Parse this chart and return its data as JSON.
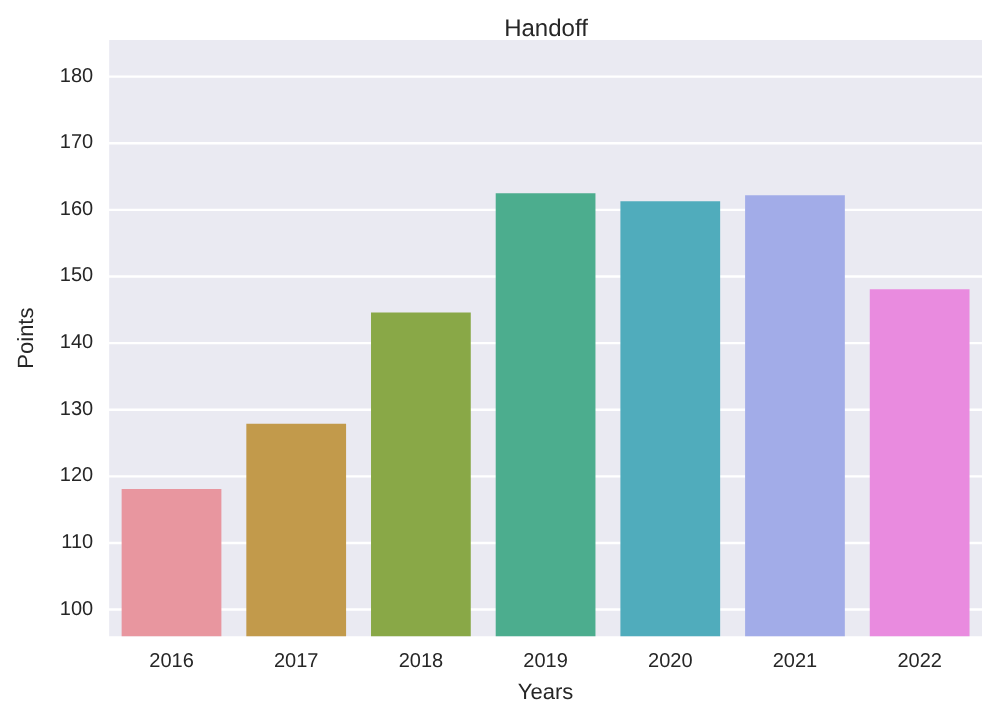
{
  "chart_data": {
    "type": "bar",
    "title": "Handoff",
    "xlabel": "Years",
    "ylabel": "Points",
    "categories": [
      "2016",
      "2017",
      "2018",
      "2019",
      "2020",
      "2021",
      "2022"
    ],
    "values": [
      118.1,
      127.9,
      144.6,
      162.5,
      161.3,
      162.2,
      148.1
    ],
    "colors": [
      "#e8969f",
      "#c29a4b",
      "#89a847",
      "#4cad8e",
      "#50acbc",
      "#a2ace8",
      "#e98bdf"
    ],
    "ylim": [
      96,
      185.5
    ],
    "yticks": [
      100,
      110,
      120,
      130,
      140,
      150,
      160,
      170,
      180
    ],
    "grid": "y"
  }
}
